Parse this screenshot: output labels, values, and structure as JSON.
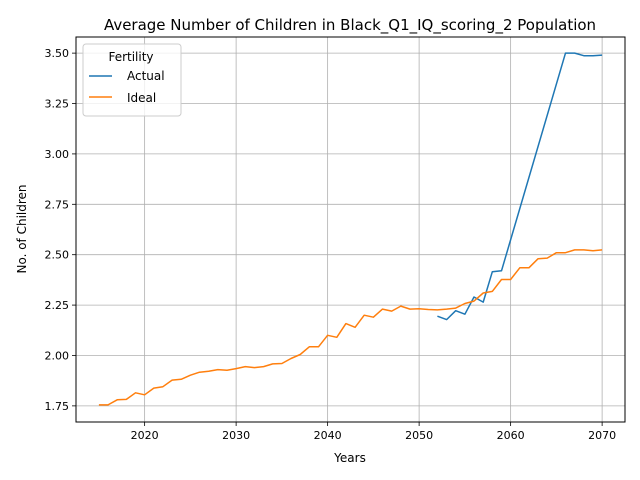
{
  "chart_data": {
    "type": "line",
    "title": "Average Number of Children in Black_Q1_IQ_scoring_2 Population",
    "xlabel": "Years",
    "ylabel": "No. of Children",
    "xlim": [
      2012.5,
      2072.5
    ],
    "ylim": [
      1.67,
      3.58
    ],
    "xticks": [
      2020,
      2030,
      2040,
      2050,
      2060,
      2070
    ],
    "yticks": [
      1.75,
      2.0,
      2.25,
      2.5,
      2.75,
      3.0,
      3.25,
      3.5
    ],
    "grid": true,
    "legend": {
      "title": "Fertility",
      "placement": "upper-left"
    },
    "series": [
      {
        "name": "Actual",
        "color": "#1f77b4",
        "x": [
          2052,
          2053,
          2054,
          2055,
          2056,
          2057,
          2058,
          2059,
          2066,
          2067,
          2068,
          2069,
          2070
        ],
        "y": [
          2.195,
          2.178,
          2.222,
          2.205,
          2.29,
          2.265,
          2.415,
          2.42,
          3.5,
          3.5,
          3.487,
          3.487,
          3.49
        ]
      },
      {
        "name": "Ideal",
        "color": "#ff7f0e",
        "x": [
          2015,
          2016,
          2017,
          2018,
          2019,
          2020,
          2021,
          2022,
          2023,
          2024,
          2025,
          2026,
          2027,
          2028,
          2029,
          2030,
          2031,
          2032,
          2033,
          2034,
          2035,
          2036,
          2037,
          2038,
          2039,
          2040,
          2041,
          2042,
          2043,
          2044,
          2045,
          2046,
          2047,
          2048,
          2049,
          2050,
          2051,
          2052,
          2053,
          2054,
          2055,
          2056,
          2057,
          2058,
          2059,
          2060,
          2061,
          2062,
          2063,
          2064,
          2065,
          2066,
          2067,
          2068,
          2069,
          2070
        ],
        "y": [
          1.755,
          1.755,
          1.78,
          1.782,
          1.815,
          1.805,
          1.838,
          1.845,
          1.878,
          1.882,
          1.902,
          1.917,
          1.922,
          1.93,
          1.927,
          1.935,
          1.945,
          1.94,
          1.945,
          1.958,
          1.96,
          1.985,
          2.005,
          2.043,
          2.043,
          2.1,
          2.09,
          2.158,
          2.14,
          2.2,
          2.19,
          2.23,
          2.22,
          2.245,
          2.23,
          2.232,
          2.228,
          2.226,
          2.23,
          2.235,
          2.258,
          2.27,
          2.31,
          2.318,
          2.377,
          2.377,
          2.435,
          2.435,
          2.48,
          2.483,
          2.51,
          2.51,
          2.524,
          2.524,
          2.52,
          2.524
        ]
      }
    ]
  }
}
